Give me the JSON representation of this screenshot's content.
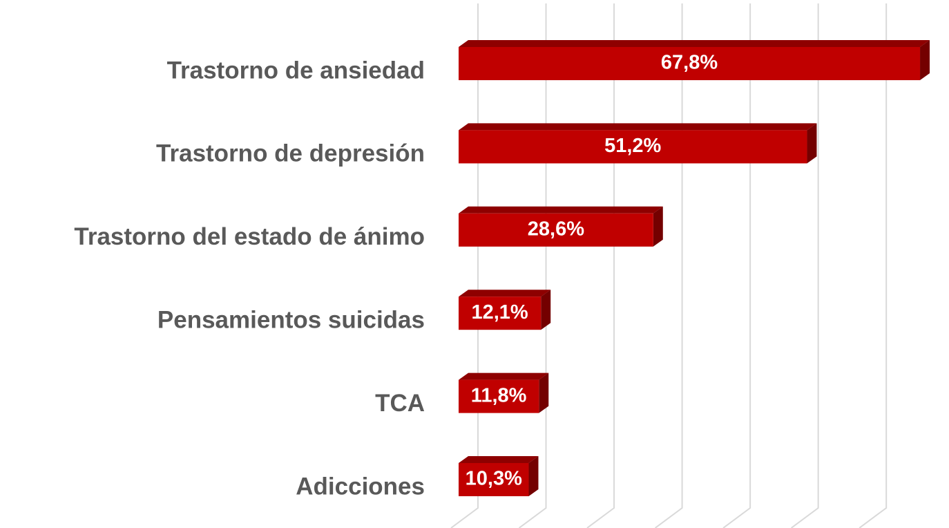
{
  "chart_data": {
    "type": "bar3d_horizontal",
    "categories": [
      "Trastorno de ansiedad",
      "Trastorno de depresión",
      "Trastorno del estado de ánimo",
      "Pensamientos suicidas",
      "TCA",
      "Adicciones"
    ],
    "values": [
      67.8,
      51.2,
      28.6,
      12.1,
      11.8,
      10.3
    ],
    "value_labels": [
      "67,8%",
      "51,2%",
      "28,6%",
      "12,1%",
      "11,8%",
      "10,3%"
    ],
    "color": "#c00000",
    "xlim": [
      0,
      70
    ],
    "xticks": [
      0,
      10,
      20,
      30,
      40,
      50,
      60
    ],
    "grid": true
  }
}
